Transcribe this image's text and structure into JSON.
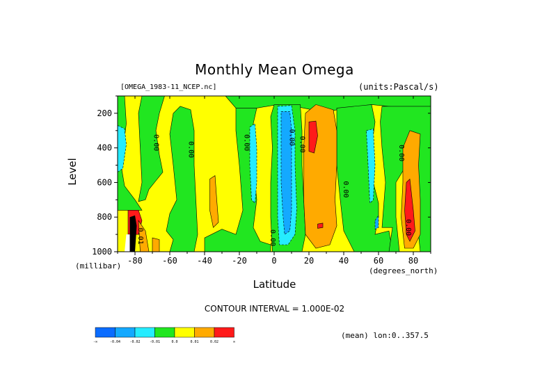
{
  "header": {
    "title": "Monthly Mean Omega",
    "file": "[OMEGA_1983-11_NCEP.nc]",
    "units": "(units:Pascal/s)"
  },
  "footer": {
    "contour_interval": "CONTOUR INTERVAL = 1.000E-02",
    "mean": "(mean) lon:0..357.5"
  },
  "chart_data": {
    "type": "heatmap",
    "title": "Monthly Mean Omega",
    "xlabel": "Latitude",
    "ylabel": "Level",
    "x_unit": "(degrees_north)",
    "y_unit": "(millibar)",
    "xlim": [
      -90,
      90
    ],
    "ylim": [
      1000,
      100
    ],
    "y_inverted": true,
    "x_ticks": [
      -80,
      -60,
      -40,
      -20,
      0,
      20,
      40,
      60,
      80
    ],
    "x_tick_labels": [
      "-80",
      "-60",
      "-40",
      "-20",
      "0",
      "20",
      "40",
      "60",
      "80"
    ],
    "y_ticks": [
      200,
      400,
      600,
      800,
      1000
    ],
    "y_tick_labels": [
      "200",
      "400",
      "600",
      "800",
      "1000"
    ],
    "contour_labels": [
      {
        "text": "0.00",
        "lat": -69,
        "level": 370,
        "angle": 90
      },
      {
        "text": "0.00",
        "lat": -49,
        "level": 410,
        "angle": 90
      },
      {
        "text": "0.00",
        "lat": -17,
        "level": 370,
        "angle": 90
      },
      {
        "text": "0.00",
        "lat": 9,
        "level": 340,
        "angle": 90
      },
      {
        "text": "0.00",
        "lat": 15,
        "level": 380,
        "angle": 90
      },
      {
        "text": "0.00",
        "lat": 40,
        "level": 640,
        "angle": 90
      },
      {
        "text": "0.00",
        "lat": 72,
        "level": 430,
        "angle": 90
      },
      {
        "text": "0.00",
        "lat": -2,
        "level": 920,
        "angle": 90
      },
      {
        "text": "0.00",
        "lat": 76,
        "level": 860,
        "angle": 90
      },
      {
        "text": "0.01",
        "lat": -78,
        "level": 910,
        "angle": 90
      }
    ],
    "colorbar": {
      "colors": [
        "#0a6cff",
        "#14a9ff",
        "#25ecff",
        "#21e620",
        "#ffff00",
        "#ffaa00",
        "#ff1a1a"
      ],
      "labels": [
        "-∞",
        "-0.04",
        "-0.02",
        "-0.01",
        "0.0",
        "0.01",
        "0.02",
        "∞"
      ]
    },
    "regions": [
      {
        "name": "yellow-background",
        "level": "0.0 to 0.01",
        "color": "#ffff00"
      },
      {
        "name": "green-band-low-lat",
        "level": "-0.01 to 0.0",
        "color": "#21e620"
      },
      {
        "name": "cyan-cell-equator",
        "level": "-0.02 to -0.01",
        "color": "#25ecff"
      },
      {
        "name": "blue-core-equator",
        "level": "-0.04 to -0.02",
        "color": "#14a9ff"
      },
      {
        "name": "orange-cell-25N",
        "level": "0.01 to 0.02",
        "color": "#ffaa00"
      },
      {
        "name": "red-core-25N",
        "level": "> 0.02",
        "color": "#ff1a1a"
      },
      {
        "name": "orange-cell-80N",
        "level": "0.01 to 0.02",
        "color": "#ffaa00"
      },
      {
        "name": "red-core-80N",
        "level": "> 0.02",
        "color": "#ff1a1a"
      }
    ]
  }
}
